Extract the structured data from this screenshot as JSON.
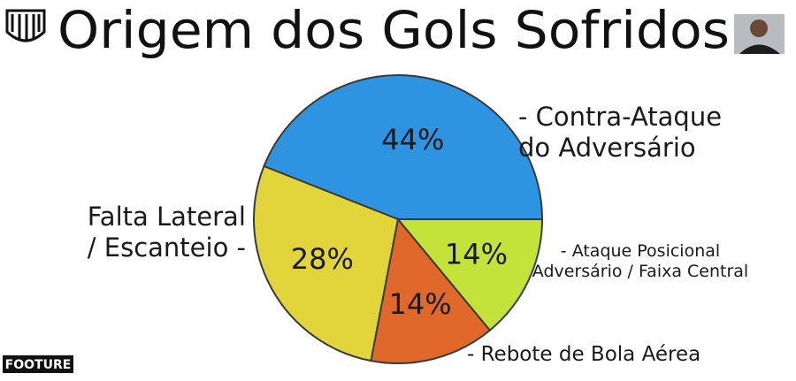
{
  "chart_data": {
    "type": "pie",
    "title": "Origem dos Gols Sofridos",
    "categories": [
      "- Contra-Ataque\ndo Adversário",
      "Falta Lateral\n/ Escanteio -",
      "- Rebote de Bola Aérea",
      "- Ataque Posicional\nAdversário / Faixa Central"
    ],
    "values": [
      44,
      28,
      14,
      14
    ],
    "value_labels": [
      "44%",
      "28%",
      "14%",
      "14%"
    ],
    "colors": [
      "#2e93e0",
      "#e2d53c",
      "#e1682b",
      "#c4e23a"
    ],
    "brand": "FOOTURE"
  }
}
